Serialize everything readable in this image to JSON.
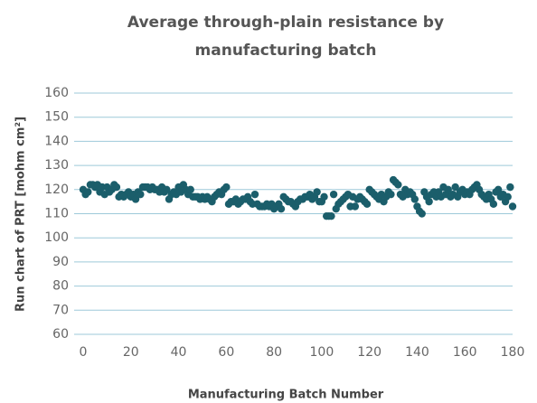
{
  "chart_data": {
    "type": "scatter",
    "title": [
      "Average through-plain resistance by",
      "manufacturing batch"
    ],
    "x_label": "Manufacturing Batch Number",
    "y_label": "Run chart of PRT [mohm cm²]",
    "color": "#1b5e6b",
    "grid": true,
    "xlim": [
      0,
      180
    ],
    "xticks": [
      0,
      20,
      40,
      60,
      80,
      100,
      120,
      140,
      160,
      180
    ],
    "ylim": [
      60,
      160
    ],
    "yticks": [
      60,
      70,
      80,
      90,
      100,
      110,
      120,
      130,
      140,
      150,
      160
    ],
    "x": [
      0,
      1,
      2,
      3,
      4,
      5,
      6,
      7,
      8,
      9,
      10,
      11,
      12,
      13,
      14,
      15,
      16,
      17,
      18,
      19,
      20,
      21,
      22,
      23,
      24,
      25,
      26,
      27,
      28,
      29,
      30,
      31,
      32,
      33,
      34,
      35,
      36,
      37,
      38,
      39,
      40,
      41,
      42,
      43,
      44,
      45,
      46,
      47,
      48,
      49,
      50,
      51,
      52,
      53,
      54,
      55,
      56,
      57,
      58,
      59,
      60,
      61,
      62,
      63,
      64,
      65,
      66,
      67,
      68,
      69,
      70,
      71,
      72,
      73,
      74,
      75,
      76,
      77,
      78,
      79,
      80,
      81,
      82,
      83,
      84,
      85,
      86,
      87,
      88,
      89,
      90,
      91,
      92,
      93,
      94,
      95,
      96,
      97,
      98,
      99,
      100,
      101,
      102,
      103,
      104,
      105,
      106,
      107,
      108,
      109,
      110,
      111,
      112,
      113,
      114,
      115,
      116,
      117,
      118,
      119,
      120,
      121,
      122,
      123,
      124,
      125,
      126,
      127,
      128,
      129,
      130,
      131,
      132,
      133,
      134,
      135,
      136,
      137,
      138,
      139,
      140,
      141,
      142,
      143,
      144,
      145,
      146,
      147,
      148,
      149,
      150,
      151,
      152,
      153,
      154,
      155,
      156,
      157,
      158,
      159,
      160,
      161,
      162,
      163,
      164,
      165,
      166,
      167,
      168,
      169,
      170,
      171,
      172,
      173,
      174,
      175,
      176,
      177,
      178,
      179,
      180
    ],
    "values": [
      120,
      118,
      119,
      122,
      122,
      121,
      122,
      119,
      121,
      118,
      121,
      119,
      120,
      122,
      121,
      117,
      118,
      117,
      118,
      119,
      117,
      118,
      116,
      119,
      118,
      121,
      121,
      121,
      120,
      121,
      120,
      120,
      119,
      121,
      119,
      120,
      116,
      118,
      119,
      118,
      121,
      119,
      122,
      120,
      118,
      120,
      117,
      117,
      117,
      116,
      117,
      116,
      117,
      116,
      115,
      117,
      118,
      119,
      118,
      120,
      121,
      114,
      115,
      115,
      116,
      114,
      115,
      116,
      116,
      117,
      115,
      114,
      118,
      114,
      113,
      113,
      113,
      114,
      113,
      114,
      112,
      113,
      114,
      112,
      117,
      116,
      115,
      115,
      114,
      113,
      115,
      116,
      116,
      117,
      117,
      118,
      116,
      117,
      119,
      115,
      115,
      117,
      109,
      109,
      109,
      118,
      112,
      114,
      115,
      116,
      117,
      118,
      113,
      117,
      113,
      116,
      117,
      116,
      115,
      114,
      120,
      119,
      118,
      117,
      116,
      118,
      115,
      117,
      119,
      118,
      124,
      123,
      122,
      118,
      117,
      120,
      118,
      119,
      118,
      116,
      113,
      111,
      110,
      119,
      117,
      115,
      118,
      119,
      117,
      119,
      117,
      121,
      118,
      120,
      117,
      118,
      121,
      117,
      119,
      120,
      118,
      119,
      118,
      120,
      121,
      122,
      120,
      118,
      117,
      116,
      118,
      116,
      114,
      119,
      120,
      117,
      118,
      115,
      117,
      121,
      113
    ]
  }
}
